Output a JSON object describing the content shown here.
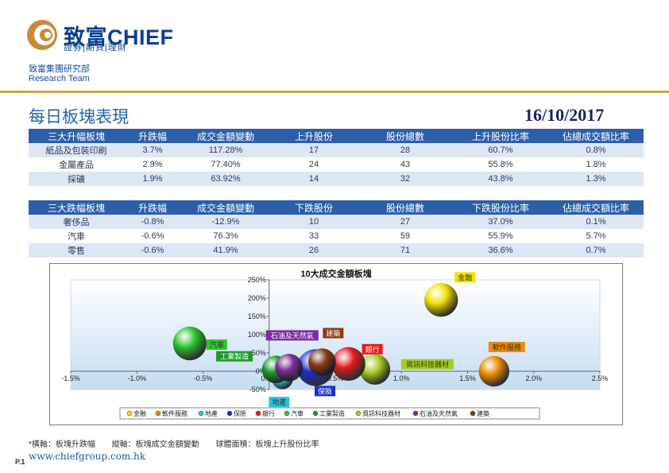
{
  "header": {
    "brand": "致富CHIEF",
    "brand_sub": "證券|期貨|理財",
    "dept_cn": "致富集團研究部",
    "dept_en": "Research Team",
    "colors": {
      "brand": "#0b3f91",
      "accent": "#d8a24a",
      "table_header": "#2d5ea8",
      "row_alt": "#dde7f4"
    }
  },
  "page": {
    "title": "每日板塊表現",
    "date": "16/10/2017"
  },
  "up_table": {
    "headers": [
      "三大升幅板塊",
      "升跌幅",
      "成交金額變動",
      "上升股份",
      "股份總數",
      "上升股份比率",
      "佔總成交額比率"
    ],
    "rows": [
      [
        "紙品及包裝印刷",
        "3.7%",
        "117.28%",
        "17",
        "28",
        "60.7%",
        "0.8%"
      ],
      [
        "金屬產品",
        "2.9%",
        "77.40%",
        "24",
        "43",
        "55.8%",
        "1.8%"
      ],
      [
        "採礦",
        "1.9%",
        "63.92%",
        "14",
        "32",
        "43.8%",
        "1.3%"
      ]
    ]
  },
  "down_table": {
    "headers": [
      "三大跌幅板塊",
      "升跌幅",
      "成交金額變動",
      "下跌股份",
      "股份總數",
      "下跌股份比率",
      "佔總成交額比率"
    ],
    "rows": [
      [
        "奢侈品",
        "-0.8%",
        "-12.9%",
        "10",
        "27",
        "37.0%",
        "0.1%"
      ],
      [
        "汽車",
        "-0.6%",
        "76.3%",
        "33",
        "59",
        "55.9%",
        "5.7%"
      ],
      [
        "零售",
        "-0.6%",
        "41.9%",
        "26",
        "71",
        "36.6%",
        "0.7%"
      ]
    ]
  },
  "chart_data": {
    "type": "scatter",
    "title": "10大成交金額板塊",
    "xlim": [
      -1.5,
      2.5
    ],
    "ylim": [
      -50,
      250
    ],
    "x_ticks": [
      "-1.5%",
      "-1.0%",
      "-0.5%",
      "0.0%",
      "0.5%",
      "1.0%",
      "1.5%",
      "2.0%",
      "2.5%"
    ],
    "y_ticks": [
      "-50%",
      "0%",
      "50%",
      "100%",
      "150%",
      "200%",
      "250%"
    ],
    "grid": false,
    "legend": "bottom",
    "series": [
      {
        "name": "金融",
        "x": 1.3,
        "y": 195,
        "size": 55,
        "color": "#f2e100",
        "label_color": "#f2e100",
        "label_text_color": "#333333"
      },
      {
        "name": "軟件服務",
        "x": 1.7,
        "y": 0,
        "size": 50,
        "color": "#f08a00",
        "label_color": "#f08a00",
        "label_text_color": "#333333"
      },
      {
        "name": "地產",
        "x": 0.1,
        "y": -20,
        "size": 35,
        "color": "#26c3df",
        "label_color": "#26c3df",
        "label_text_color": "#333333"
      },
      {
        "name": "保險",
        "x": 0.35,
        "y": 10,
        "size": 60,
        "color": "#1a2ecf",
        "label_color": "#1a2ecf",
        "label_text_color": "#ffffff"
      },
      {
        "name": "銀行",
        "x": 0.6,
        "y": 20,
        "size": 55,
        "color": "#e51b1b",
        "label_color": "#e51b1b",
        "label_text_color": "#ffffff"
      },
      {
        "name": "汽車",
        "x": -0.6,
        "y": 76,
        "size": 55,
        "color": "#2bc62b",
        "label_color": "#2bc62b",
        "label_text_color": "#333333"
      },
      {
        "name": "工業製造",
        "x": 0.05,
        "y": 5,
        "size": 45,
        "color": "#1c9a2c",
        "label_color": "#1c9a2c",
        "label_text_color": "#ffffff"
      },
      {
        "name": "資訊科技器材",
        "x": 0.8,
        "y": 5,
        "size": 50,
        "color": "#a6cd1f",
        "label_color": "#a6cd1f",
        "label_text_color": "#333333"
      },
      {
        "name": "石油及天然氣",
        "x": 0.15,
        "y": 10,
        "size": 45,
        "color": "#7b2c9e",
        "label_color": "#7b2c9e",
        "label_text_color": "#ffffff"
      },
      {
        "name": "建築",
        "x": 0.4,
        "y": 25,
        "size": 45,
        "color": "#8c3b10",
        "label_color": "#8c3b10",
        "label_text_color": "#ffffff"
      }
    ]
  },
  "footnote": {
    "x_note": "*橫軸：板塊升跌幅",
    "y_note": "縱軸：板塊成交金額變動",
    "size_note": "球體面積：板塊上升股份比率"
  },
  "footer": {
    "page_number": "P.1",
    "website": "www.chiefgroup.com.hk"
  }
}
